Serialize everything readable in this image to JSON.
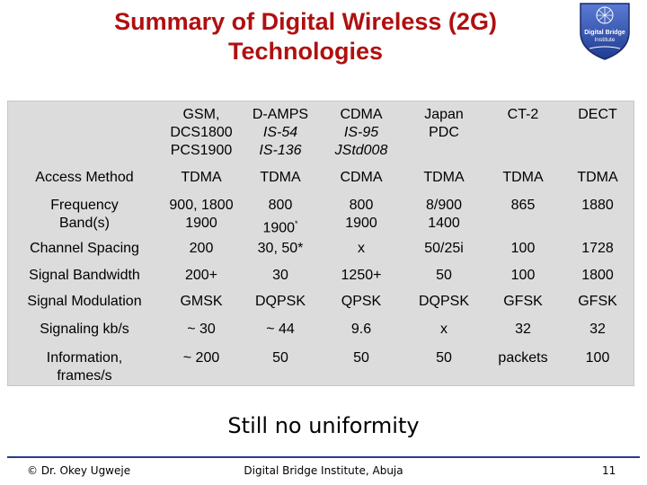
{
  "title": {
    "line1": "Summary of Digital Wireless (2G)",
    "line2": "Technologies"
  },
  "logo": {
    "line1": "Digital Bridge",
    "line2": "Institute"
  },
  "table": {
    "columns": [
      {
        "l1": "GSM,",
        "l2": "DCS1800",
        "l3": "PCS1900"
      },
      {
        "l1": "D-AMPS",
        "l2": "IS-54",
        "l3": "IS-136"
      },
      {
        "l1": "CDMA",
        "l2": "IS-95",
        "l3": "JStd008"
      },
      {
        "l1": "Japan",
        "l2": "PDC",
        "l3": ""
      },
      {
        "l1": "CT-2",
        "l2": "",
        "l3": ""
      },
      {
        "l1": "DECT",
        "l2": "",
        "l3": ""
      }
    ],
    "rows": [
      {
        "label": "Access Method",
        "cells": [
          "TDMA",
          "TDMA",
          "CDMA",
          "TDMA",
          "TDMA",
          "TDMA"
        ]
      },
      {
        "label_l1": "Frequency",
        "label_l2": "Band(s)",
        "cells": [
          {
            "l1": "900, 1800",
            "l2": "1900"
          },
          {
            "l1": "800",
            "l2": "1900",
            "sup": "*"
          },
          {
            "l1": "800",
            "l2": "1900"
          },
          {
            "l1": "8/900",
            "l2": "1400"
          },
          {
            "l1": "865",
            "l2": ""
          },
          {
            "l1": "1880",
            "l2": ""
          }
        ]
      },
      {
        "label": "Channel Spacing",
        "cells": [
          "200",
          "30, 50*",
          "x",
          "50/25i",
          "100",
          "1728"
        ]
      },
      {
        "label": "Signal Bandwidth",
        "cells": [
          "200+",
          "30",
          "1250+",
          "50",
          "100",
          "1800"
        ]
      },
      {
        "label": "Signal Modulation",
        "cells": [
          "GMSK",
          "DQPSK",
          "QPSK",
          "DQPSK",
          "GFSK",
          "GFSK"
        ]
      },
      {
        "label": "Signaling kb/s",
        "cells": [
          "~ 30",
          "~ 44",
          "9.6",
          "x",
          "32",
          "32"
        ]
      },
      {
        "label_l1": "Information,",
        "label_l2": "frames/s",
        "cells": [
          "~ 200",
          "50",
          "50",
          "50",
          "packets",
          "100"
        ]
      }
    ]
  },
  "subtitle": "Still no uniformity",
  "footer": {
    "left": "© Dr. Okey Ugweje",
    "center": "Digital Bridge Institute, Abuja",
    "right": "11"
  },
  "colors": {
    "title": "#b01010",
    "table_bg": "#dcdcdc",
    "footer_line": "#2a3b8f"
  }
}
